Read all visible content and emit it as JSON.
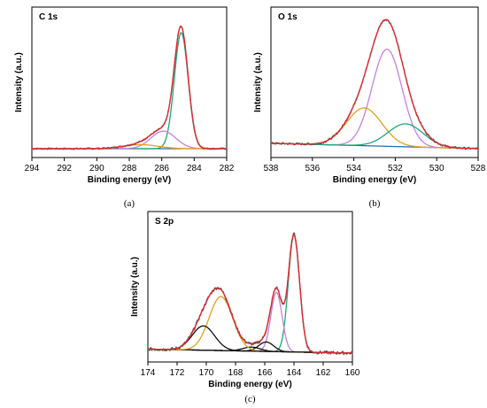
{
  "colors": {
    "envelope": "#e8262b",
    "raw": "#555555",
    "green": "#1aa67a",
    "purple": "#c77fe0",
    "orange": "#e0a21a",
    "blue": "#2a6fb0",
    "black": "#111111"
  },
  "chart_data": [
    {
      "type": "line",
      "title": "C 1s",
      "xlabel": "Binding energy (eV)",
      "ylabel": "Intensity (a.u.)",
      "caption": "(a)",
      "xlim": [
        294,
        282
      ],
      "xticks": [
        294,
        292,
        290,
        288,
        286,
        284,
        282
      ],
      "ylim": [
        0,
        1.05
      ],
      "grid": false,
      "legend": "none",
      "baseline": [
        [
          294,
          0.0
        ],
        [
          282,
          0.0
        ]
      ],
      "peaks": [
        {
          "color": "green",
          "center": 284.8,
          "height": 0.86,
          "fwhm": 1.0
        },
        {
          "color": "purple",
          "center": 285.9,
          "height": 0.13,
          "fwhm": 1.8
        },
        {
          "color": "orange",
          "center": 287.3,
          "height": 0.03,
          "fwhm": 2.5
        }
      ],
      "raw_noise": 0.006
    },
    {
      "type": "line",
      "title": "O 1s",
      "xlabel": "Binding energy (eV)",
      "ylabel": "Intensity (a.u.)",
      "caption": "(b)",
      "xlim": [
        538,
        528
      ],
      "xticks": [
        538,
        536,
        534,
        532,
        530,
        528
      ],
      "ylim": [
        0,
        1.05
      ],
      "grid": false,
      "legend": "none",
      "baseline": [
        [
          538,
          0.04
        ],
        [
          528,
          0.0
        ]
      ],
      "peaks": [
        {
          "color": "purple",
          "center": 532.4,
          "height": 0.72,
          "fwhm": 1.7
        },
        {
          "color": "orange",
          "center": 533.5,
          "height": 0.28,
          "fwhm": 2.0
        },
        {
          "color": "green",
          "center": 531.5,
          "height": 0.17,
          "fwhm": 2.0
        }
      ],
      "raw_noise": 0.008
    },
    {
      "type": "line",
      "title": "S 2p",
      "xlabel": "Binding energy (eV)",
      "ylabel": "Intensity (a.u.)",
      "caption": "(c)",
      "xlim": [
        174,
        160
      ],
      "xticks": [
        174,
        172,
        170,
        168,
        166,
        164,
        162,
        160
      ],
      "ylim": [
        0,
        1.05
      ],
      "grid": false,
      "legend": "none",
      "baseline": [
        [
          174,
          0.03
        ],
        [
          160,
          0.0
        ]
      ],
      "peaks": [
        {
          "color": "green",
          "center": 164.0,
          "height": 0.87,
          "fwhm": 0.9
        },
        {
          "color": "purple",
          "center": 165.2,
          "height": 0.44,
          "fwhm": 0.9
        },
        {
          "color": "black",
          "center": 165.9,
          "height": 0.07,
          "fwhm": 1.2
        },
        {
          "color": "black",
          "center": 166.9,
          "height": 0.03,
          "fwhm": 1.4
        },
        {
          "color": "orange",
          "center": 169.0,
          "height": 0.4,
          "fwhm": 1.9
        },
        {
          "color": "black",
          "center": 170.2,
          "height": 0.18,
          "fwhm": 1.8
        }
      ],
      "raw_noise": 0.012
    }
  ]
}
